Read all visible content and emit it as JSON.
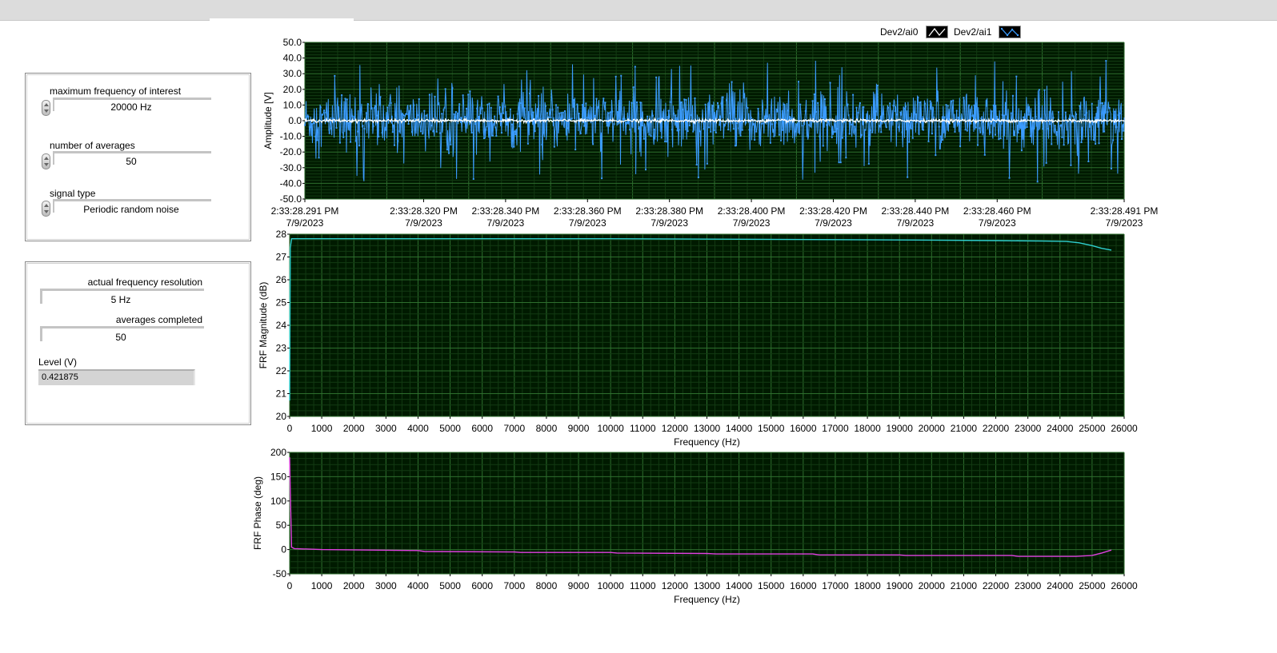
{
  "window": {
    "titlebar": ""
  },
  "controls": {
    "max_freq": {
      "label": "maximum frequency of interest",
      "value": "20000 Hz"
    },
    "num_avg": {
      "label": "number of averages",
      "value": "50"
    },
    "signal_type": {
      "label": "signal type",
      "value": "Periodic random noise"
    }
  },
  "indicators": {
    "freq_res": {
      "label": "actual frequency resolution",
      "value": "5 Hz"
    },
    "avg_done": {
      "label": "averages completed",
      "value": "50"
    },
    "level": {
      "label": "Level (V)",
      "value": "0.421875"
    }
  },
  "legend": [
    {
      "name": "Dev2/ai0",
      "color": "#ffffff"
    },
    {
      "name": "Dev2/ai1",
      "color": "#3b9cff"
    }
  ],
  "colors": {
    "plot_bg": "#001a00",
    "grid_major": "#2e6e2e",
    "grid_minor": "#123a12",
    "ai0": "#ffffff",
    "ai1": "#3b9cff",
    "magnitude": "#2fd0d0",
    "phase": "#e040e0"
  },
  "chart_data": [
    {
      "type": "line",
      "ylabel": "Amplitude [V]",
      "xlabel": "",
      "ylim": [
        -50,
        50
      ],
      "yticks": [
        "50.0",
        "40.0",
        "30.0",
        "20.0",
        "10.0",
        "0.0",
        "-10.0",
        "-20.0",
        "-30.0",
        "-40.0",
        "-50.0"
      ],
      "xticks": [
        {
          "time": "2:33:28.291 PM",
          "date": "7/9/2023"
        },
        {
          "time": "2:33:28.320 PM",
          "date": "7/9/2023"
        },
        {
          "time": "2:33:28.340 PM",
          "date": "7/9/2023"
        },
        {
          "time": "2:33:28.360 PM",
          "date": "7/9/2023"
        },
        {
          "time": "2:33:28.380 PM",
          "date": "7/9/2023"
        },
        {
          "time": "2:33:28.400 PM",
          "date": "7/9/2023"
        },
        {
          "time": "2:33:28.420 PM",
          "date": "7/9/2023"
        },
        {
          "time": "2:33:28.440 PM",
          "date": "7/9/2023"
        },
        {
          "time": "2:33:28.460 PM",
          "date": "7/9/2023"
        },
        {
          "time": "2:33:28.491 PM",
          "date": "7/9/2023"
        }
      ],
      "xlim_ms": [
        291,
        491
      ],
      "grid": true,
      "series": [
        {
          "name": "Dev2/ai0",
          "description_amplitude_peak": 1.0,
          "values_range": [
            -1,
            1
          ]
        },
        {
          "name": "Dev2/ai1",
          "description_amplitude_peak": 40.0,
          "values_range": [
            -40,
            40
          ]
        }
      ]
    },
    {
      "type": "line",
      "ylabel": "FRF Magnitude (dB)",
      "xlabel": "Frequency (Hz)",
      "xlim": [
        0,
        26000
      ],
      "ylim": [
        20,
        28
      ],
      "xticks": [
        0,
        1000,
        2000,
        3000,
        4000,
        5000,
        6000,
        7000,
        8000,
        9000,
        10000,
        11000,
        12000,
        13000,
        14000,
        15000,
        16000,
        17000,
        18000,
        19000,
        20000,
        21000,
        22000,
        23000,
        24000,
        25000,
        26000
      ],
      "yticks": [
        20,
        21,
        22,
        23,
        24,
        25,
        26,
        27,
        28
      ],
      "grid": true,
      "series": [
        {
          "name": "FRF Magnitude",
          "x": [
            0,
            20,
            60,
            100,
            2000,
            6000,
            10000,
            14000,
            17000,
            20000,
            22000,
            23500,
            24200,
            24600,
            25000,
            25300,
            25600
          ],
          "y": [
            20.7,
            27.4,
            27.8,
            27.8,
            27.8,
            27.8,
            27.8,
            27.78,
            27.76,
            27.74,
            27.72,
            27.7,
            27.68,
            27.62,
            27.5,
            27.38,
            27.3
          ]
        }
      ]
    },
    {
      "type": "line",
      "ylabel": "FRF Phase (deg)",
      "xlabel": "Frequency (Hz)",
      "xlim": [
        0,
        26000
      ],
      "ylim": [
        -50,
        200
      ],
      "xticks": [
        0,
        1000,
        2000,
        3000,
        4000,
        5000,
        6000,
        7000,
        8000,
        9000,
        10000,
        11000,
        12000,
        13000,
        14000,
        15000,
        16000,
        17000,
        18000,
        19000,
        20000,
        21000,
        22000,
        23000,
        24000,
        25000,
        26000
      ],
      "yticks": [
        200,
        150,
        100,
        50,
        0,
        -50
      ],
      "grid": true,
      "series": [
        {
          "name": "FRF Phase",
          "x": [
            0,
            20,
            60,
            150,
            1000,
            4000,
            4200,
            7000,
            7200,
            10000,
            10200,
            13000,
            13300,
            16300,
            16500,
            19000,
            19200,
            22500,
            22700,
            24500,
            25000,
            25300,
            25600
          ],
          "y": [
            190,
            120,
            5,
            2,
            0,
            -2,
            -4,
            -5,
            -6,
            -6,
            -7,
            -8,
            -9,
            -9,
            -11,
            -11,
            -12,
            -12,
            -14,
            -14,
            -12,
            -7,
            -1
          ]
        }
      ]
    }
  ]
}
